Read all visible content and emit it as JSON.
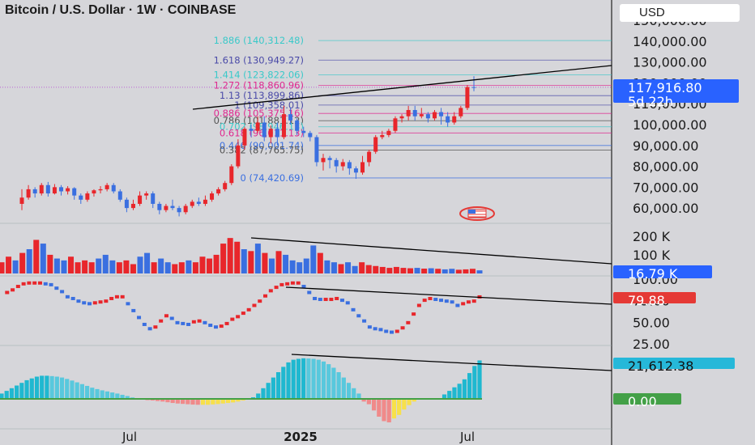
{
  "title": "Bitcoin / U.S. Dollar · 1W · COINBASE",
  "currency_button": "USD",
  "colors": {
    "up": "#e8262b",
    "down": "#3a6fe0",
    "hist_up": "#1fb8d0",
    "hist_down_pos": "#f7e04a",
    "hist_neg": "#f08a8a",
    "price_tag": "#2962ff",
    "rsi_tag": "#e53935",
    "osc_tag": "#26b8d9",
    "zero_tag": "#43a047"
  },
  "chart_data": [
    {
      "type": "candlestick",
      "title": "Bitcoin / U.S. Dollar · 1W · COINBASE",
      "y_ticks": [
        "150,000.00",
        "140,000.00",
        "130,000.00",
        "120,000.00",
        "110,000.00",
        "100,000.00",
        "90,000.00",
        "80,000.00",
        "70,000.00",
        "60,000.00"
      ],
      "ylim": [
        55000,
        152000
      ],
      "x_ticks": [
        "Jul",
        "2025",
        "Jul"
      ],
      "last_price": "117,916.80",
      "countdown": "5d 22h",
      "fib_levels": [
        {
          "label": "1.886 (140,312.48)",
          "value": 140312.48,
          "color": "#3ac9c9"
        },
        {
          "label": "1.618 (130,949.27)",
          "value": 130949.27,
          "color": "#4a4aa8"
        },
        {
          "label": "1.414 (123,822.06)",
          "value": 123822.06,
          "color": "#3ac9c9"
        },
        {
          "label": "1.272 (118,860.96)",
          "value": 118860.96,
          "color": "#e0288f"
        },
        {
          "label": "1.13 (113,899.86)",
          "value": 113899.86,
          "color": "#4a4aa8"
        },
        {
          "label": "1 (109,358.01)",
          "value": 109358.01,
          "color": "#4a4aa8"
        },
        {
          "label": "0.886 (105,375.16)",
          "value": 105375.16,
          "color": "#e0288f"
        },
        {
          "label": "0.786 (101,881.12)",
          "value": 101881.12,
          "color": "#555"
        },
        {
          "label": "0.702 (98,946.13)",
          "value": 98946.13,
          "color": "#3ac9c9"
        },
        {
          "label": "0.618 (96,011.13)",
          "value": 96011.13,
          "color": "#e0288f"
        },
        {
          "label": "0.446 (90,001.74)",
          "value": 90001.74,
          "color": "#3a6fe0"
        },
        {
          "label": "0.382 (87,765.75)",
          "value": 87765.75,
          "color": "#555"
        },
        {
          "label": "0 (74,420.69)",
          "value": 74420.69,
          "color": "#3a6fe0"
        }
      ],
      "candles": [
        [
          62000,
          65000,
          59000,
          69000
        ],
        [
          65000,
          69000,
          64000,
          71000
        ],
        [
          69000,
          67000,
          65000,
          70000
        ],
        [
          67000,
          71000,
          66000,
          72000
        ],
        [
          71000,
          67000,
          65500,
          72500
        ],
        [
          67000,
          70000,
          66500,
          71500
        ],
        [
          70000,
          68000,
          66000,
          71000
        ],
        [
          68000,
          69500,
          66500,
          70500
        ],
        [
          69500,
          66000,
          64000,
          70000
        ],
        [
          66000,
          64000,
          62000,
          67000
        ],
        [
          64000,
          67000,
          63000,
          68000
        ],
        [
          67000,
          68500,
          65500,
          69000
        ],
        [
          68500,
          69000,
          67000,
          70500
        ],
        [
          69000,
          71000,
          68000,
          72000
        ],
        [
          71000,
          68000,
          67000,
          72000
        ],
        [
          68000,
          64000,
          63000,
          69000
        ],
        [
          64000,
          60000,
          58000,
          65000
        ],
        [
          60000,
          62000,
          59000,
          64000
        ],
        [
          62000,
          66000,
          61000,
          68000
        ],
        [
          66000,
          67000,
          64000,
          68000
        ],
        [
          67000,
          62000,
          60000,
          68000
        ],
        [
          62000,
          59000,
          57000,
          63000
        ],
        [
          59000,
          61000,
          58000,
          62000
        ],
        [
          61000,
          60000,
          59000,
          64000
        ],
        [
          60000,
          58000,
          56000,
          61000
        ],
        [
          58000,
          61000,
          57000,
          62000
        ],
        [
          61000,
          63000,
          60000,
          64000
        ],
        [
          63000,
          62000,
          61000,
          65000
        ],
        [
          62000,
          64000,
          61000,
          66000
        ],
        [
          64000,
          67000,
          63000,
          68000
        ],
        [
          67000,
          69000,
          66000,
          70000
        ],
        [
          69000,
          72000,
          68000,
          73000
        ],
        [
          72000,
          80000,
          71000,
          81000
        ],
        [
          80000,
          90000,
          79000,
          93000
        ],
        [
          90000,
          98000,
          88000,
          99000
        ],
        [
          98000,
          97000,
          94000,
          100000
        ],
        [
          97000,
          101000,
          96000,
          104000
        ],
        [
          101000,
          94000,
          92000,
          104000
        ],
        [
          94000,
          98000,
          91000,
          99500
        ],
        [
          98000,
          94000,
          90000,
          101000
        ],
        [
          94000,
          105000,
          93000,
          109000
        ],
        [
          105000,
          102000,
          100000,
          108000
        ],
        [
          102000,
          97000,
          95000,
          103000
        ],
        [
          97000,
          96000,
          94000,
          99000
        ],
        [
          96000,
          94000,
          92000,
          97000
        ],
        [
          94000,
          82000,
          80000,
          95000
        ],
        [
          82000,
          84000,
          78000,
          86000
        ],
        [
          84000,
          83000,
          79000,
          85000
        ],
        [
          83000,
          80000,
          77000,
          84000
        ],
        [
          80000,
          82000,
          78000,
          83500
        ],
        [
          82000,
          79000,
          76000,
          83000
        ],
        [
          79000,
          77000,
          74000,
          80000
        ],
        [
          77000,
          82000,
          76000,
          85000
        ],
        [
          82000,
          87000,
          80000,
          88000
        ],
        [
          87000,
          94000,
          86000,
          95000
        ],
        [
          94000,
          95000,
          93000,
          97000
        ],
        [
          95000,
          97000,
          94000,
          98000
        ],
        [
          97000,
          103000,
          96000,
          104000
        ],
        [
          103000,
          104000,
          101000,
          105000
        ],
        [
          104000,
          107000,
          102000,
          109000
        ],
        [
          107000,
          104000,
          102000,
          109000
        ],
        [
          104000,
          105000,
          103000,
          108000
        ],
        [
          105000,
          103000,
          101000,
          106000
        ],
        [
          103000,
          106000,
          102000,
          107000
        ],
        [
          106000,
          104000,
          100000,
          108000
        ],
        [
          104000,
          101000,
          99000,
          106000
        ],
        [
          101000,
          104000,
          100000,
          106000
        ],
        [
          104000,
          108000,
          103000,
          109000
        ],
        [
          108000,
          118000,
          107000,
          119000
        ],
        [
          118000,
          117917,
          116000,
          123200
        ]
      ]
    },
    {
      "type": "bar",
      "name": "Volume",
      "y_ticks": [
        "200 K",
        "100 K"
      ],
      "ylim": [
        0,
        260000
      ],
      "last_value": "16.79 K",
      "values": [
        60000,
        90000,
        70000,
        110000,
        130000,
        180000,
        160000,
        100000,
        80000,
        70000,
        90000,
        60000,
        70000,
        60000,
        80000,
        100000,
        70000,
        60000,
        70000,
        50000,
        90000,
        110000,
        60000,
        80000,
        60000,
        50000,
        60000,
        70000,
        60000,
        90000,
        80000,
        100000,
        160000,
        190000,
        170000,
        130000,
        120000,
        160000,
        110000,
        80000,
        120000,
        100000,
        70000,
        60000,
        80000,
        150000,
        110000,
        70000,
        60000,
        50000,
        60000,
        40000,
        60000,
        45000,
        40000,
        35000,
        30000,
        35000,
        30000,
        28000,
        30000,
        26000,
        28000,
        25000,
        22000,
        25000,
        20000,
        22000,
        25000,
        16790
      ]
    },
    {
      "type": "line",
      "name": "RSI",
      "y_ticks": [
        "100.00",
        "75.00",
        "50.00",
        "25.00"
      ],
      "ylim": [
        25,
        100
      ],
      "last_value": "79.88",
      "values": [
        82,
        85,
        88,
        92,
        95,
        96,
        96,
        96,
        95,
        94,
        90,
        86,
        80,
        78,
        75,
        73,
        72,
        73,
        74,
        75,
        78,
        80,
        80,
        72,
        64,
        56,
        48,
        43,
        45,
        52,
        58,
        55,
        50,
        49,
        48,
        51,
        52,
        50,
        47,
        45,
        46,
        49,
        54,
        57,
        61,
        65,
        70,
        75,
        81,
        87,
        91,
        94,
        95,
        96,
        96,
        92,
        85,
        78,
        77,
        77,
        77,
        78,
        76,
        73,
        65,
        58,
        52,
        45,
        43,
        42,
        40,
        39,
        40,
        44,
        50,
        60,
        70,
        76,
        78,
        77,
        76,
        75,
        74,
        70,
        72,
        74,
        75,
        79.88
      ]
    },
    {
      "type": "bar",
      "name": "Momentum oscillator",
      "ylim": [
        -14000,
        25000
      ],
      "last_value": "21,612.38",
      "zero_value": "0.00",
      "values": [
        3000,
        4500,
        6000,
        7500,
        9000,
        10500,
        11500,
        12500,
        13000,
        13000,
        12800,
        12500,
        12000,
        11200,
        10300,
        9300,
        8300,
        7300,
        6300,
        5500,
        4800,
        4200,
        3600,
        3000,
        2300,
        1600,
        800,
        200,
        -300,
        -700,
        -900,
        -1200,
        -1500,
        -1900,
        -2300,
        -2600,
        -2800,
        -3000,
        -3200,
        -3300,
        -3300,
        -3300,
        -3100,
        -2900,
        -2600,
        -2300,
        -2000,
        -1500,
        -900,
        -200,
        900,
        3000,
        6000,
        9000,
        12000,
        15000,
        18000,
        20500,
        22000,
        22500,
        22800,
        22700,
        22500,
        22000,
        21000,
        19500,
        17500,
        15000,
        12000,
        9000,
        6000,
        3000,
        -1500,
        -3000,
        -6500,
        -10000,
        -12500,
        -13200,
        -11000,
        -9000,
        -6000,
        -3500,
        -1500,
        -400,
        -200,
        -200,
        -200,
        300,
        2500,
        4500,
        6500,
        8500,
        11000,
        14500,
        18500,
        21612.38
      ]
    }
  ]
}
